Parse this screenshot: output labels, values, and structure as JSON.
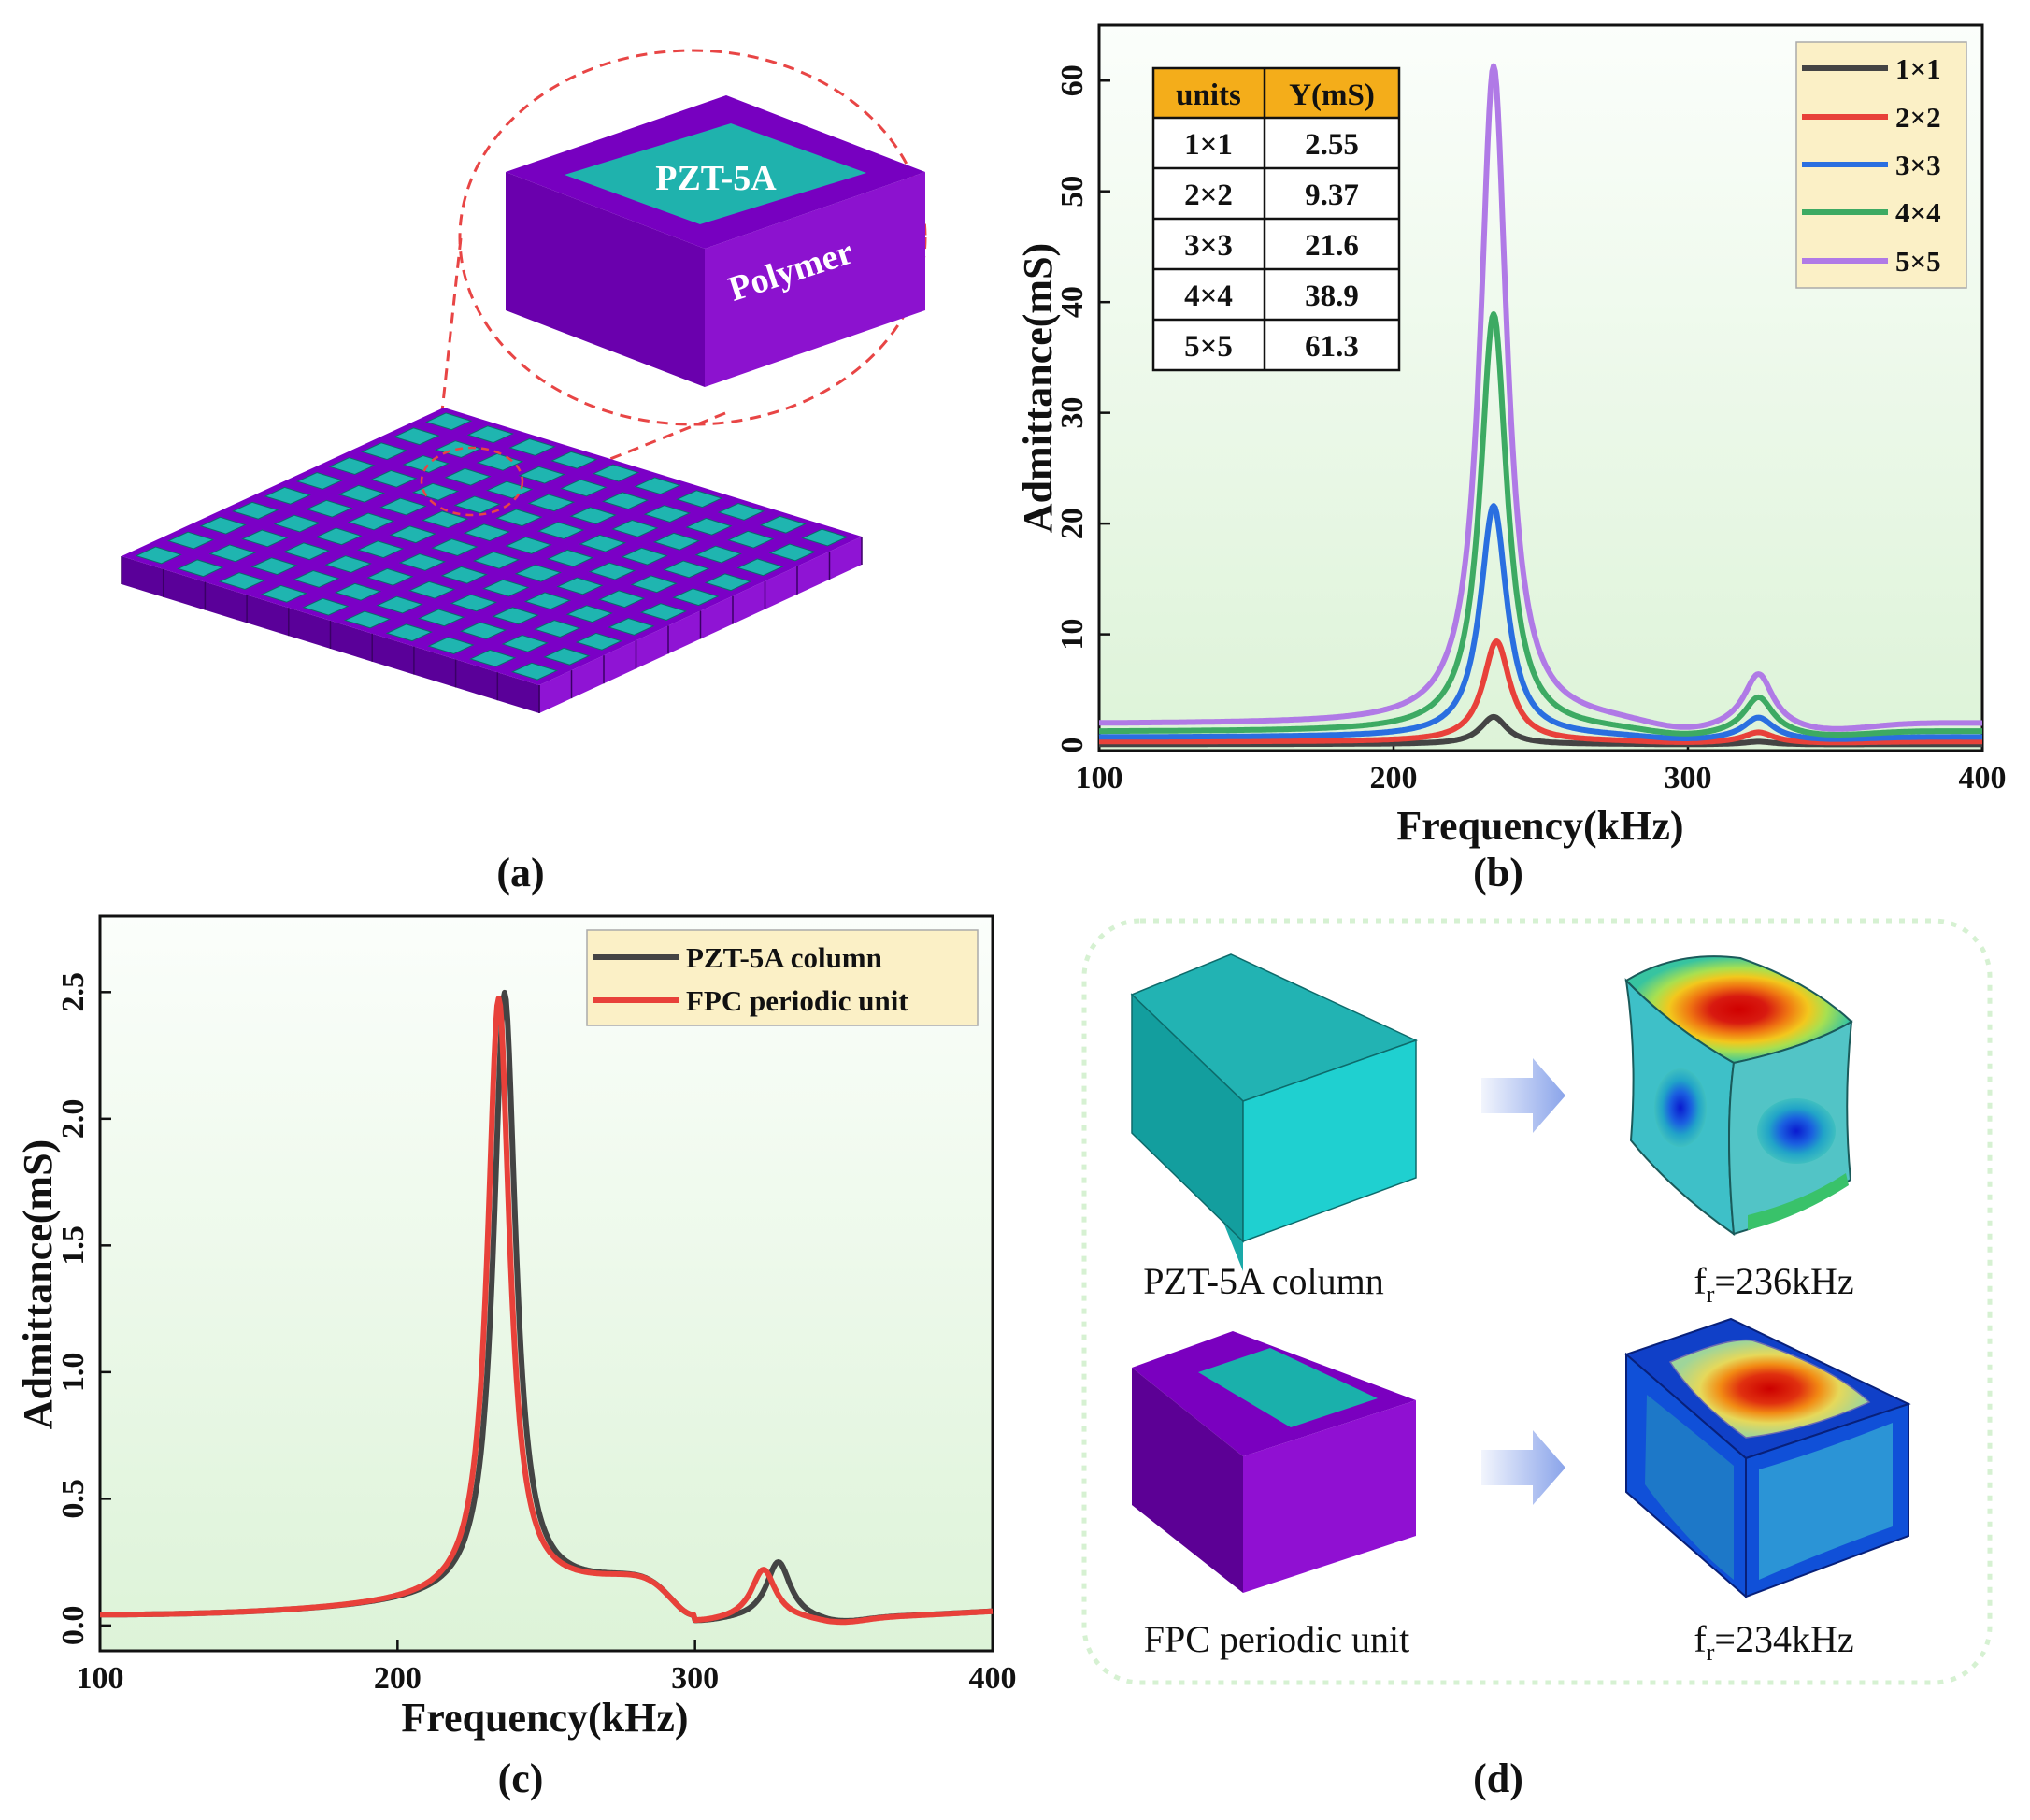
{
  "panels": {
    "a": {
      "label": "(a)",
      "inset_top_label": "PZT-5A",
      "inset_side_label": "Polymer",
      "grid_units": [
        10,
        10
      ],
      "colors": {
        "polymer_top": "#7b00c6",
        "polymer_left": "#5a0099",
        "polymer_right": "#8f14d4",
        "pzt": "#1fb5b0"
      }
    },
    "b": {
      "label": "(b)",
      "table": {
        "headers": [
          "units",
          "Y(mS)"
        ],
        "rows": [
          [
            "1×1",
            "2.55"
          ],
          [
            "2×2",
            "9.37"
          ],
          [
            "3×3",
            "21.6"
          ],
          [
            "4×4",
            "38.9"
          ],
          [
            "5×5",
            "61.3"
          ]
        ]
      },
      "legend": [
        "1×1",
        "2×2",
        "3×3",
        "4×4",
        "5×5"
      ]
    },
    "c": {
      "label": "(c)",
      "legend": [
        "PZT-5A column",
        "FPC periodic unit"
      ]
    },
    "d": {
      "label": "(d)",
      "caption_1": "PZT-5A column",
      "caption_2": "FPC periodic unit",
      "freq_1": {
        "f": "f",
        "sub": "r",
        "rest": "=236kHz"
      },
      "freq_2": {
        "f": "f",
        "sub": "r",
        "rest": "=234kHz"
      }
    }
  },
  "chart_data": [
    {
      "id": "b",
      "type": "line",
      "xlabel": "Frequency(kHz)",
      "ylabel": "Admittance(mS)",
      "xlim": [
        100,
        400
      ],
      "ylim": [
        -0.5,
        65
      ],
      "xticks": [
        100,
        200,
        300,
        400
      ],
      "yticks": [
        0,
        10,
        20,
        30,
        40,
        50,
        60
      ],
      "legend_position": "top-right",
      "background": "#e9f8e6",
      "series": [
        {
          "name": "1×1",
          "color": "#444444",
          "peak_freq": 234,
          "peak": 2.55,
          "baseline": 0.07,
          "second_peak_freq": 324,
          "second_peak": 0.25
        },
        {
          "name": "2×2",
          "color": "#e8413a",
          "peak_freq": 235,
          "peak": 9.37,
          "baseline": 0.3,
          "second_peak_freq": 324,
          "second_peak": 0.9
        },
        {
          "name": "3×3",
          "color": "#2a6fe0",
          "peak_freq": 234,
          "peak": 21.6,
          "baseline": 0.7,
          "second_peak_freq": 324,
          "second_peak": 1.9
        },
        {
          "name": "4×4",
          "color": "#3daa63",
          "peak_freq": 234,
          "peak": 38.9,
          "baseline": 1.2,
          "second_peak_freq": 324,
          "second_peak": 3.3
        },
        {
          "name": "5×5",
          "color": "#b07ae6",
          "peak_freq": 234,
          "peak": 61.3,
          "baseline": 1.9,
          "second_peak_freq": 324,
          "second_peak": 4.8
        }
      ]
    },
    {
      "id": "c",
      "type": "line",
      "xlabel": "Frequency(kHz)",
      "ylabel": "Admittance(mS)",
      "xlim": [
        100,
        400
      ],
      "ylim": [
        -0.1,
        2.8
      ],
      "xticks": [
        100,
        200,
        300,
        400
      ],
      "yticks": [
        0.0,
        0.5,
        1.0,
        1.5,
        2.0,
        2.5
      ],
      "legend_position": "top-right",
      "background": "#e9f8e6",
      "series": [
        {
          "name": "PZT-5A column",
          "color": "#444444",
          "peak_freq": 236,
          "peak": 2.58,
          "second_peak_freq": 328,
          "second_peak": 0.23
        },
        {
          "name": "FPC periodic unit",
          "color": "#e8413a",
          "peak_freq": 234,
          "peak": 2.56,
          "second_peak_freq": 323,
          "second_peak": 0.2
        }
      ]
    }
  ]
}
